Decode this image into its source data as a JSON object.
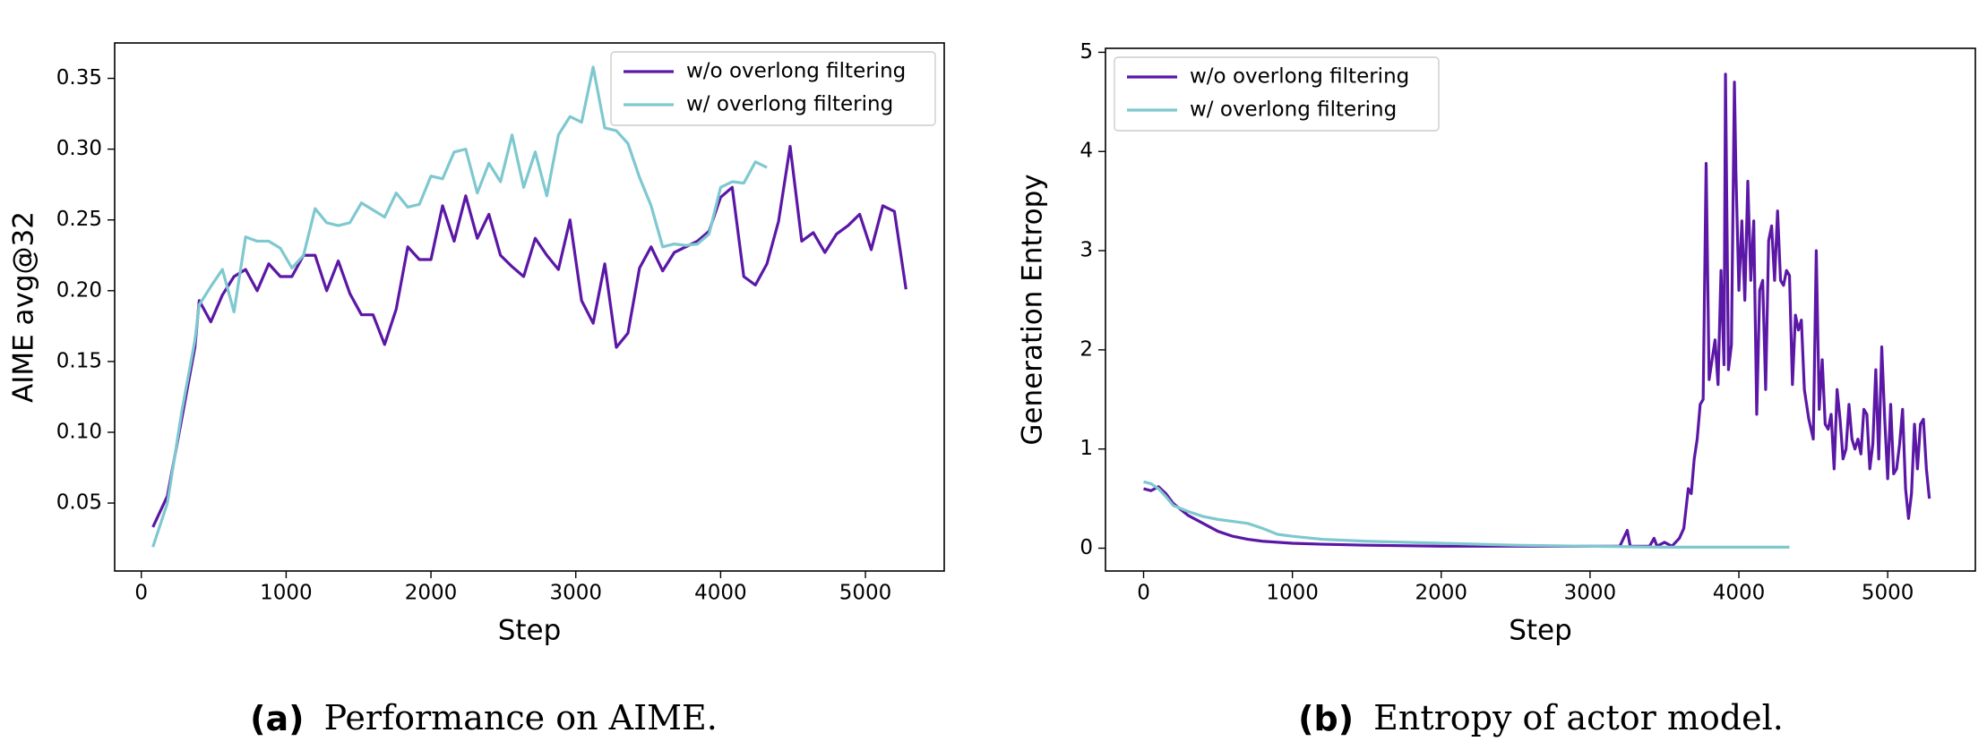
{
  "chart_data": [
    {
      "type": "line",
      "caption_label": "(a)",
      "caption": "Performance on AIME.",
      "x_label": "Step",
      "y_label": "AIME avg@32",
      "xlim": [
        -184,
        5544
      ],
      "ylim": [
        0.002,
        0.375
      ],
      "xticks": [
        0,
        1000,
        2000,
        3000,
        4000,
        5000
      ],
      "yticks": [
        0.05,
        {
          "value": 0.1,
          "label": "0.10"
        },
        0.15,
        {
          "value": 0.2,
          "label": "0.20"
        },
        0.25,
        {
          "value": 0.3,
          "label": "0.30"
        },
        0.35
      ],
      "legend": "upper right",
      "grid": false,
      "series": [
        {
          "name": "w/o overlong filtering",
          "color": "#5b17a5",
          "x": [
            80,
            180,
            280,
            370,
            400,
            480,
            560,
            640,
            720,
            800,
            880,
            960,
            1040,
            1120,
            1200,
            1280,
            1360,
            1440,
            1520,
            1600,
            1680,
            1760,
            1840,
            1920,
            2000,
            2080,
            2160,
            2240,
            2320,
            2400,
            2480,
            2560,
            2640,
            2720,
            2800,
            2880,
            2960,
            3040,
            3120,
            3200,
            3280,
            3360,
            3440,
            3520,
            3600,
            3680,
            3760,
            3840,
            3920,
            4000,
            4080,
            4160,
            4240,
            4320,
            4400,
            4480,
            4560,
            4640,
            4720,
            4800,
            4880,
            4960,
            5040,
            5120,
            5200,
            5280
          ],
          "values": [
            0.033,
            0.055,
            0.11,
            0.16,
            0.193,
            0.178,
            0.197,
            0.21,
            0.215,
            0.2,
            0.219,
            0.21,
            0.21,
            0.225,
            0.225,
            0.2,
            0.221,
            0.198,
            0.183,
            0.183,
            0.162,
            0.187,
            0.231,
            0.222,
            0.222,
            0.26,
            0.235,
            0.267,
            0.237,
            0.254,
            0.225,
            0.217,
            0.21,
            0.237,
            0.225,
            0.215,
            0.25,
            0.193,
            0.177,
            0.219,
            0.16,
            0.17,
            0.216,
            0.231,
            0.214,
            0.227,
            0.231,
            0.235,
            0.242,
            0.266,
            0.273,
            0.21,
            0.204,
            0.219,
            0.249,
            0.302,
            0.235,
            0.241,
            0.227,
            0.24,
            0.246,
            0.254,
            0.229,
            0.26,
            0.256,
            0.201
          ]
        },
        {
          "name": "w/ overlong filtering",
          "color": "#7ec8cf",
          "x": [
            80,
            180,
            280,
            370,
            400,
            480,
            560,
            640,
            720,
            800,
            880,
            960,
            1040,
            1120,
            1200,
            1280,
            1360,
            1440,
            1520,
            1600,
            1680,
            1760,
            1840,
            1920,
            2000,
            2080,
            2160,
            2240,
            2320,
            2400,
            2480,
            2560,
            2640,
            2720,
            2800,
            2880,
            2960,
            3040,
            3120,
            3200,
            3280,
            3360,
            3440,
            3520,
            3600,
            3680,
            3760,
            3840,
            3920,
            4000,
            4080,
            4160,
            4240,
            4320
          ],
          "values": [
            0.019,
            0.05,
            0.115,
            0.165,
            0.19,
            0.203,
            0.215,
            0.185,
            0.238,
            0.235,
            0.235,
            0.23,
            0.216,
            0.225,
            0.258,
            0.248,
            0.246,
            0.248,
            0.262,
            0.257,
            0.252,
            0.269,
            0.259,
            0.261,
            0.281,
            0.279,
            0.298,
            0.3,
            0.269,
            0.29,
            0.277,
            0.31,
            0.273,
            0.298,
            0.267,
            0.31,
            0.323,
            0.319,
            0.358,
            0.315,
            0.313,
            0.304,
            0.28,
            0.26,
            0.231,
            0.233,
            0.232,
            0.233,
            0.24,
            0.273,
            0.277,
            0.276,
            0.291,
            0.287
          ]
        }
      ]
    },
    {
      "type": "line",
      "caption_label": "(b)",
      "caption": "Entropy of actor model.",
      "x_label": "Step",
      "y_label": "Generation Entropy",
      "xlim": [
        -256,
        5589
      ],
      "ylim": [
        -0.23,
        5.04
      ],
      "xticks": [
        0,
        1000,
        2000,
        3000,
        4000,
        5000
      ],
      "yticks": [
        0,
        1,
        2,
        3,
        4,
        5
      ],
      "legend": "upper left",
      "grid": false,
      "series": [
        {
          "name": "w/o overlong filtering",
          "color": "#5b17a5",
          "x": [
            0,
            50,
            100,
            150,
            200,
            300,
            400,
            500,
            600,
            700,
            800,
            1000,
            1200,
            1500,
            2000,
            2500,
            3000,
            3200,
            3250,
            3270,
            3400,
            3430,
            3450,
            3500,
            3550,
            3600,
            3630,
            3660,
            3680,
            3700,
            3720,
            3740,
            3760,
            3780,
            3800,
            3820,
            3840,
            3860,
            3880,
            3900,
            3910,
            3930,
            3950,
            3970,
            3980,
            4000,
            4020,
            4040,
            4060,
            4080,
            4100,
            4120,
            4140,
            4160,
            4180,
            4200,
            4220,
            4240,
            4260,
            4280,
            4300,
            4320,
            4340,
            4360,
            4380,
            4400,
            4420,
            4440,
            4470,
            4500,
            4520,
            4540,
            4560,
            4580,
            4600,
            4620,
            4640,
            4660,
            4680,
            4700,
            4720,
            4740,
            4760,
            4780,
            4800,
            4820,
            4840,
            4860,
            4880,
            4900,
            4920,
            4940,
            4960,
            4980,
            5000,
            5020,
            5040,
            5060,
            5080,
            5100,
            5120,
            5140,
            5160,
            5180,
            5200,
            5220,
            5240,
            5260,
            5280
          ],
          "values": [
            0.6,
            0.58,
            0.62,
            0.55,
            0.45,
            0.33,
            0.25,
            0.17,
            0.12,
            0.09,
            0.07,
            0.05,
            0.04,
            0.03,
            0.02,
            0.02,
            0.02,
            0.02,
            0.18,
            0.02,
            0.02,
            0.1,
            0.02,
            0.06,
            0.02,
            0.1,
            0.2,
            0.6,
            0.55,
            0.9,
            1.1,
            1.45,
            1.5,
            3.88,
            1.7,
            1.9,
            2.1,
            1.65,
            2.8,
            1.85,
            4.78,
            1.8,
            2.05,
            4.7,
            3.8,
            2.6,
            3.3,
            2.5,
            3.7,
            2.7,
            3.3,
            1.35,
            2.6,
            2.7,
            1.6,
            3.1,
            3.25,
            2.7,
            3.4,
            2.7,
            2.65,
            2.8,
            2.75,
            1.65,
            2.35,
            2.2,
            2.3,
            1.6,
            1.3,
            1.1,
            3.0,
            1.4,
            1.9,
            1.25,
            1.2,
            1.35,
            0.8,
            1.6,
            1.3,
            0.9,
            1.0,
            1.45,
            1.1,
            1.0,
            1.1,
            0.95,
            1.4,
            1.35,
            0.8,
            1.05,
            1.8,
            0.9,
            2.03,
            1.3,
            0.7,
            1.45,
            0.75,
            0.8,
            1.05,
            1.4,
            0.6,
            0.3,
            0.55,
            1.25,
            0.8,
            1.25,
            1.3,
            0.8,
            0.5
          ]
        },
        {
          "name": "w/ overlong filtering",
          "color": "#7ec8cf",
          "x": [
            0,
            50,
            100,
            150,
            200,
            300,
            400,
            500,
            600,
            700,
            800,
            900,
            1000,
            1200,
            1500,
            2000,
            2500,
            3000,
            3500,
            4000,
            4340
          ],
          "values": [
            0.67,
            0.65,
            0.6,
            0.52,
            0.43,
            0.37,
            0.32,
            0.29,
            0.27,
            0.25,
            0.2,
            0.14,
            0.12,
            0.09,
            0.07,
            0.05,
            0.03,
            0.02,
            0.01,
            0.01,
            0.01
          ]
        }
      ]
    }
  ]
}
